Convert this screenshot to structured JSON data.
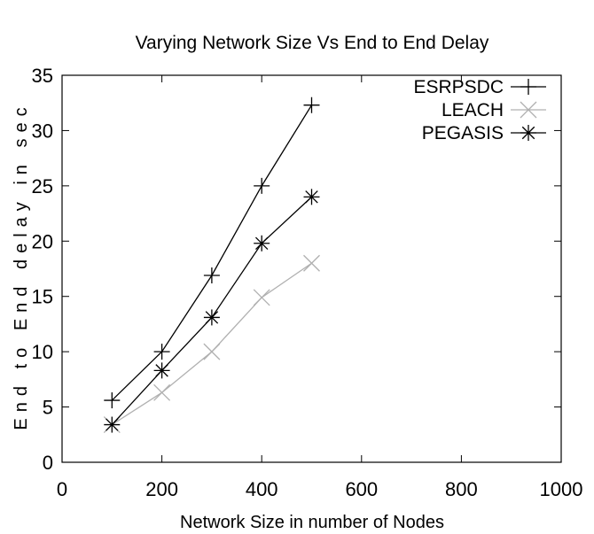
{
  "chart_data": {
    "type": "line",
    "title": "Varying Network Size Vs End to End Delay",
    "xlabel": "Network Size in number of Nodes",
    "ylabel": "End to End delay in sec",
    "xlim": [
      0,
      1000
    ],
    "ylim": [
      0,
      35
    ],
    "xticks": [
      "0",
      "200",
      "400",
      "600",
      "800",
      "1000"
    ],
    "yticks": [
      "0",
      "5",
      "10",
      "15",
      "20",
      "25",
      "30",
      "35"
    ],
    "grid": false,
    "legend_position": "top-right",
    "series": [
      {
        "name": "ESRPSDC",
        "color": "#000000",
        "marker": "plus",
        "x": [
          100,
          200,
          300,
          400,
          500
        ],
        "y": [
          5.6,
          10.0,
          16.9,
          25.0,
          32.3
        ]
      },
      {
        "name": "LEACH",
        "color": "#b0b0b0",
        "marker": "cross",
        "x": [
          100,
          200,
          300,
          400,
          500
        ],
        "y": [
          3.4,
          6.3,
          10.0,
          14.9,
          18.0
        ]
      },
      {
        "name": "PEGASIS",
        "color": "#000000",
        "marker": "star",
        "x": [
          100,
          200,
          300,
          400,
          500
        ],
        "y": [
          3.4,
          8.3,
          13.1,
          19.8,
          24.0
        ]
      }
    ]
  }
}
